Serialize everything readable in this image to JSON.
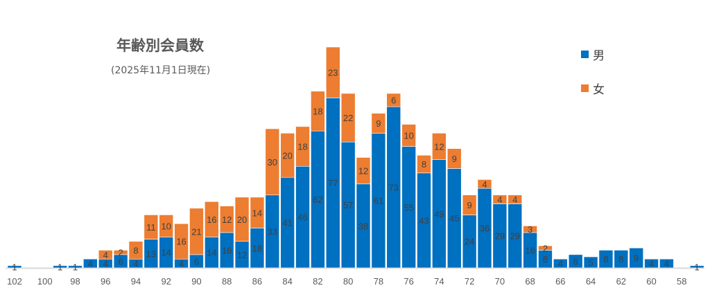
{
  "chart_data": {
    "type": "bar",
    "stacked": true,
    "title": "年齢別会員数",
    "subtitle": "(2025年11月1日現在)",
    "xlabel": "",
    "ylabel": "",
    "ylim": [
      0,
      100
    ],
    "grid": false,
    "legend_position": "top-right",
    "categories": [
      102,
      101,
      100,
      99,
      98,
      97,
      96,
      95,
      94,
      93,
      92,
      91,
      90,
      89,
      88,
      87,
      86,
      85,
      84,
      83,
      82,
      81,
      80,
      79,
      78,
      77,
      76,
      75,
      74,
      73,
      72,
      71,
      70,
      69,
      68,
      67,
      66,
      65,
      64,
      63,
      62,
      61,
      60,
      59,
      58,
      57
    ],
    "tick_labels": [
      "102",
      "100",
      "98",
      "96",
      "94",
      "92",
      "90",
      "88",
      "86",
      "84",
      "82",
      "80",
      "78",
      "76",
      "74",
      "72",
      "70",
      "68",
      "66",
      "64",
      "62",
      "60",
      "58"
    ],
    "series": [
      {
        "name": "男",
        "color": "#0070C0",
        "values": [
          1,
          0,
          0,
          1,
          1,
          4,
          4,
          6,
          4,
          13,
          14,
          4,
          6,
          14,
          16,
          12,
          18,
          33,
          41,
          46,
          62,
          77,
          57,
          38,
          61,
          73,
          55,
          43,
          49,
          45,
          24,
          36,
          29,
          29,
          16,
          8,
          4,
          6,
          5,
          8,
          8,
          9,
          4,
          4,
          0,
          1
        ]
      },
      {
        "name": "女",
        "color": "#ED7D31",
        "values": [
          0,
          0,
          0,
          0,
          0,
          0,
          4,
          2,
          8,
          11,
          10,
          16,
          21,
          16,
          12,
          20,
          14,
          30,
          20,
          18,
          18,
          23,
          22,
          12,
          9,
          6,
          10,
          8,
          12,
          9,
          9,
          4,
          4,
          4,
          3,
          2,
          0,
          0,
          0,
          0,
          0,
          0,
          0,
          0,
          0,
          0
        ]
      }
    ]
  }
}
